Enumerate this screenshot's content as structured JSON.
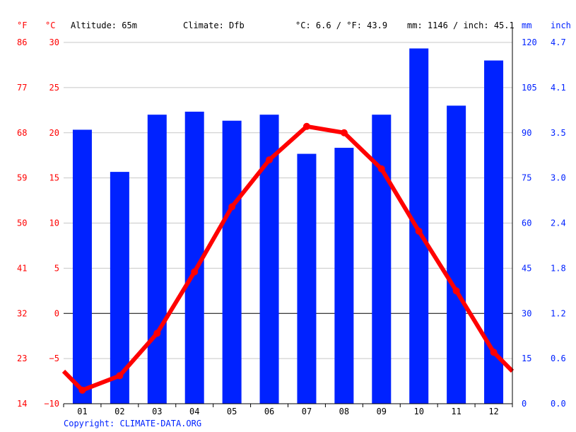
{
  "header": {
    "unit_f": "°F",
    "unit_c": "°C",
    "altitude": "Altitude: 65m",
    "climate": "Climate: Dfb",
    "temp_avg": "°C: 6.6 / °F: 43.9",
    "precip_total": "mm: 1146 / inch: 45.1",
    "unit_mm": "mm",
    "unit_inch": "inch"
  },
  "copyright": "Copyright: CLIMATE-DATA.ORG",
  "colors": {
    "temperature": "#ff0000",
    "precipitation": "#0022ff"
  },
  "chart_data": {
    "type": "bar+line",
    "categories": [
      "01",
      "02",
      "03",
      "04",
      "05",
      "06",
      "07",
      "08",
      "09",
      "10",
      "11",
      "12"
    ],
    "series": [
      {
        "type": "bar",
        "axis": "mm",
        "values": [
          91,
          77,
          96,
          97,
          94,
          96,
          83,
          85,
          96,
          118,
          99,
          114
        ]
      },
      {
        "type": "line",
        "axis": "°C",
        "values": [
          -8.5,
          -6.9,
          -2.2,
          4.6,
          11.8,
          17.0,
          20.7,
          20.0,
          16.0,
          9.1,
          2.5,
          -4.3
        ]
      }
    ],
    "y_left_c": {
      "range": [
        -10,
        30
      ],
      "ticks": [
        "30",
        "25",
        "20",
        "15",
        "10",
        "5",
        "0",
        "−5",
        "−10"
      ]
    },
    "y_left_f": {
      "ticks": [
        "86",
        "77",
        "68",
        "59",
        "50",
        "41",
        "32",
        "23",
        "14"
      ]
    },
    "y_right_mm": {
      "range": [
        0,
        120
      ],
      "ticks": [
        "120",
        "105",
        "90",
        "75",
        "60",
        "45",
        "30",
        "15",
        "0"
      ]
    },
    "y_right_inch": {
      "ticks": [
        "4.7",
        "4.1",
        "3.5",
        "3.0",
        "2.4",
        "1.8",
        "1.2",
        "0.6",
        "0.0"
      ]
    },
    "grid": true
  }
}
